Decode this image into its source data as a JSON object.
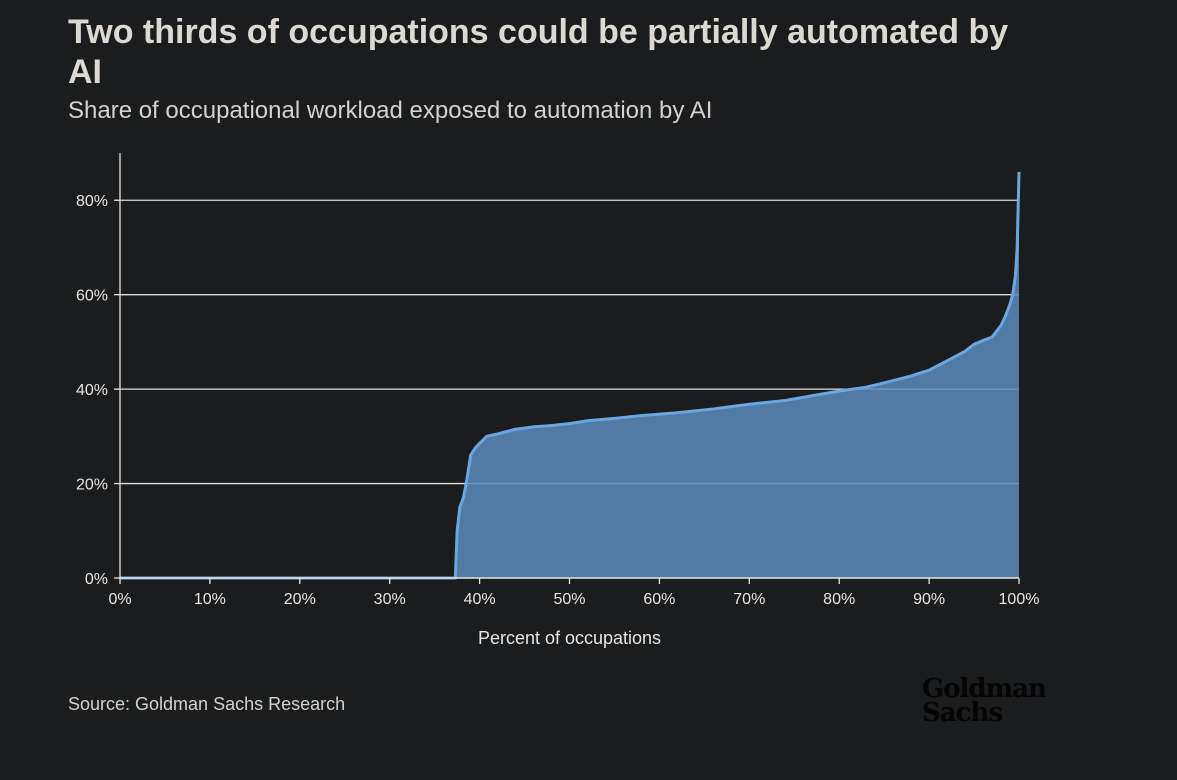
{
  "title": "Two thirds of occupations could be partially automated by AI",
  "subtitle": "Share of occupational workload exposed to automation by AI",
  "source": "Source: Goldman Sachs Research",
  "logo": [
    "Goldman",
    "Sachs"
  ],
  "colors": {
    "background": "#1b1c1e",
    "line": "#6aa6e0",
    "area": "#5a8cbd",
    "gridline": "#ffffff",
    "logo": "#050505"
  },
  "chart_data": {
    "type": "area",
    "title": "Two thirds of occupations could be partially automated by AI",
    "subtitle": "Share of occupational workload exposed to automation by AI",
    "xlabel": "Percent of occupations",
    "ylabel": "",
    "xlim": [
      0,
      100
    ],
    "ylim": [
      0,
      90
    ],
    "x_ticks": [
      0,
      10,
      20,
      30,
      40,
      50,
      60,
      70,
      80,
      90,
      100
    ],
    "x_tick_labels": [
      "0%",
      "10%",
      "20%",
      "30%",
      "40%",
      "50%",
      "60%",
      "70%",
      "80%",
      "90%",
      "100%"
    ],
    "y_ticks": [
      0,
      20,
      40,
      60,
      80
    ],
    "y_tick_labels": [
      "0%",
      "20%",
      "40%",
      "60%",
      "80%"
    ],
    "grid": "horizontal",
    "legend": "none",
    "series": [
      {
        "x": [
          0,
          37.3,
          37.5,
          37.8,
          38.2,
          38.6,
          39.0,
          39.5,
          40.0,
          40.8,
          42.0,
          44.0,
          46.0,
          48.0,
          50.0,
          52.0,
          55.0,
          58.0,
          62.0,
          66.0,
          70.0,
          74.0,
          77.0,
          80.0,
          83.0,
          86.0,
          88.0,
          90.0,
          92.0,
          94.0,
          95.0,
          96.0,
          97.0,
          98.0,
          98.5,
          99.0,
          99.3,
          99.6,
          99.8,
          100.0
        ],
        "y": [
          0,
          0,
          10,
          15,
          17,
          21,
          26,
          27.5,
          28.5,
          30,
          30.5,
          31.5,
          32,
          32.3,
          32.7,
          33.3,
          33.8,
          34.4,
          35,
          35.8,
          36.8,
          37.6,
          38.6,
          39.6,
          40.4,
          41.8,
          42.8,
          44,
          46,
          48,
          49.5,
          50.3,
          51,
          53.5,
          55.5,
          58,
          60,
          64,
          70,
          86
        ]
      }
    ]
  }
}
